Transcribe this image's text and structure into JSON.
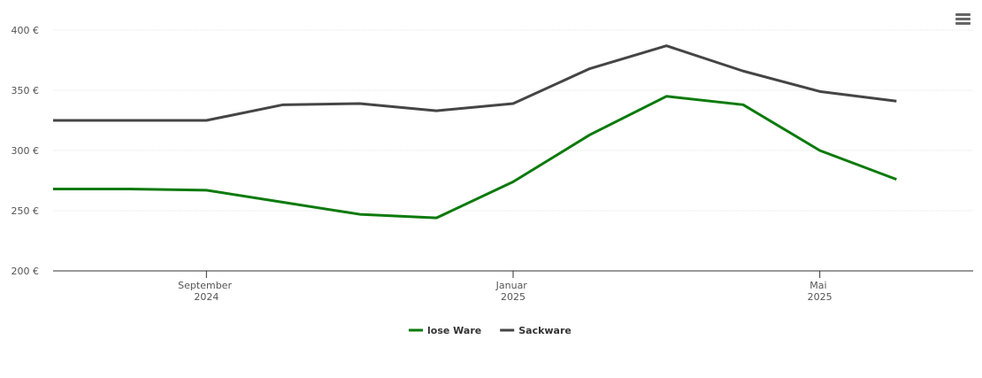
{
  "chart_data": {
    "type": "line",
    "x": [
      "2024-07",
      "2024-08",
      "2024-09",
      "2024-10",
      "2024-11",
      "2024-12",
      "2025-01",
      "2025-02",
      "2025-03",
      "2025-04",
      "2025-05",
      "2025-06"
    ],
    "series": [
      {
        "name": "lose Ware",
        "color": "#0b7a0b",
        "values": [
          268,
          268,
          267,
          257,
          247,
          244,
          274,
          313,
          345,
          338,
          300,
          276
        ]
      },
      {
        "name": "Sackware",
        "color": "#454545",
        "values": [
          325,
          325,
          325,
          338,
          339,
          333,
          339,
          368,
          387,
          366,
          349,
          341
        ]
      }
    ],
    "xlim": [
      "2024-07",
      "2025-07"
    ],
    "xticks": [
      {
        "value": "2024-09",
        "label": "September 2024"
      },
      {
        "value": "2025-01",
        "label": "Januar 2025"
      },
      {
        "value": "2025-05",
        "label": "Mai 2025"
      }
    ],
    "ylim": [
      200,
      400
    ],
    "yticks": [
      {
        "value": 200,
        "label": "200 €"
      },
      {
        "value": 250,
        "label": "250 €"
      },
      {
        "value": 300,
        "label": "300 €"
      },
      {
        "value": 350,
        "label": "350 €"
      },
      {
        "value": 400,
        "label": "400 €"
      }
    ],
    "grid": true,
    "legend": "bottom"
  }
}
